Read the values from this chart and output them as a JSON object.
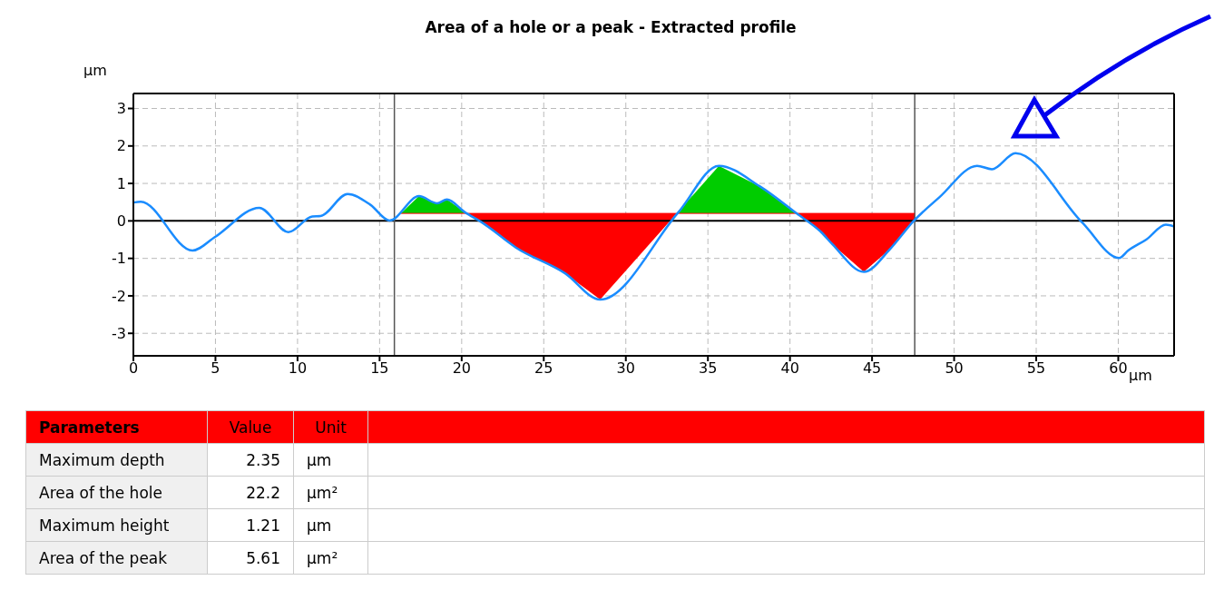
{
  "chart_data": {
    "type": "line",
    "title": "Area of a hole or a peak - Extracted profile",
    "xlabel": "µm",
    "ylabel": "µm",
    "xlim": [
      0,
      63.4
    ],
    "ylim": [
      -3.6,
      3.4
    ],
    "xticks": [
      0,
      5,
      10,
      15,
      20,
      25,
      30,
      35,
      40,
      45,
      50,
      55,
      60
    ],
    "yticks": [
      -3,
      -2,
      -1,
      0,
      1,
      2,
      3
    ],
    "grid": true,
    "legend": false,
    "marker": "none",
    "line_style": "solid",
    "series": [
      {
        "type": "area",
        "color": "#00cc00",
        "x": [
          16.3,
          17.4,
          18.5,
          19.1,
          20.3
        ],
        "values": [
          0.2,
          0.66,
          0.47,
          0.57,
          0.2
        ]
      },
      {
        "type": "area",
        "color": "#ff0000",
        "x": [
          20.3,
          21.3,
          23.3,
          26.3,
          28.44,
          33.1
        ],
        "values": [
          0.2,
          -0.06,
          -0.71,
          -1.4,
          -2.1,
          0.2
        ]
      },
      {
        "type": "area",
        "color": "#00cc00",
        "x": [
          33.1,
          35.67,
          38.17,
          40.4
        ],
        "values": [
          0.2,
          1.47,
          0.92,
          0.2
        ]
      },
      {
        "type": "area",
        "color": "#ff0000",
        "x": [
          40.4,
          41.9,
          42.6,
          44.5,
          46.1,
          47.6,
          47.6
        ],
        "values": [
          0.2,
          -0.3,
          -0.63,
          -1.36,
          -0.75,
          0.05,
          0.2
        ]
      },
      {
        "type": "line",
        "color": "#1a8cff",
        "x": [
          0,
          0.45,
          3.6,
          5.0,
          7.67,
          9.44,
          10.9,
          11.4,
          13.05,
          14.44,
          15.6,
          17.4,
          18.5,
          19.1,
          20.2,
          21.3,
          23.3,
          26.3,
          28.44,
          33.2,
          35.67,
          38.17,
          40.4,
          41.9,
          42.6,
          44.5,
          46.1,
          47.5,
          49.1,
          51.4,
          52.3,
          53.74,
          57.8,
          60.05,
          60.6,
          61.7,
          62.9,
          63.4
        ],
        "values": [
          0.49,
          0.51,
          -0.79,
          -0.42,
          0.35,
          -0.3,
          0.12,
          0.13,
          0.72,
          0.43,
          0.01,
          0.66,
          0.47,
          0.57,
          0.23,
          -0.06,
          -0.71,
          -1.4,
          -2.1,
          0.23,
          1.47,
          0.92,
          0.2,
          -0.3,
          -0.63,
          -1.36,
          -0.75,
          -0.02,
          0.63,
          1.47,
          1.38,
          1.81,
          -0.04,
          -0.99,
          -0.79,
          -0.5,
          -0.1,
          -0.15
        ]
      }
    ],
    "ref_lines": [
      {
        "axis": "y",
        "value": 0,
        "color": "#000000"
      },
      {
        "axis": "x",
        "value": 15.9,
        "color": "#555555"
      },
      {
        "axis": "x",
        "value": 47.6,
        "color": "#555555"
      },
      {
        "axis": "y",
        "value": 0.2,
        "color": "#ff0000"
      }
    ],
    "annotations": [
      "Parameters",
      "Value",
      "Unit",
      "Maximum depth",
      "2.35",
      "µm",
      "Area of the hole",
      "22.2",
      "µm²",
      "Maximum height",
      "1.21",
      "µm",
      "Area of the peak",
      "5.61",
      "µm²"
    ]
  }
}
